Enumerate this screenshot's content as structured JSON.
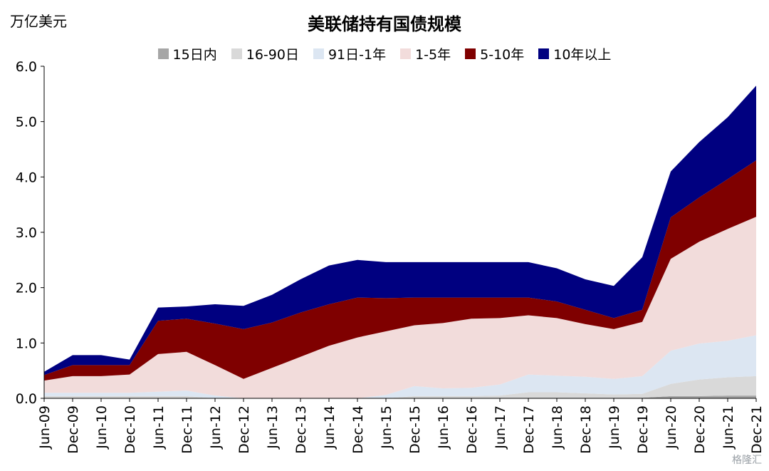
{
  "chart_data": {
    "type": "area",
    "title": "美联储持有国债规模",
    "unit_label": "万亿美元",
    "ylim": [
      0,
      6
    ],
    "y_ticks": [
      "0.0",
      "1.0",
      "2.0",
      "3.0",
      "4.0",
      "5.0",
      "6.0"
    ],
    "x_ticks": [
      "Jun-09",
      "Dec-09",
      "Jun-10",
      "Dec-10",
      "Jun-11",
      "Dec-11",
      "Jun-12",
      "Dec-12",
      "Jun-13",
      "Dec-13",
      "Jun-14",
      "Dec-14",
      "Jun-15",
      "Dec-15",
      "Jun-16",
      "Dec-16",
      "Jun-17",
      "Dec-17",
      "Jun-18",
      "Dec-18",
      "Jun-19",
      "Dec-19",
      "Jun-20",
      "Dec-20",
      "Jun-21",
      "Dec-21"
    ],
    "legend_position": "top",
    "stacked": true,
    "x": [
      "Jun-09",
      "Dec-09",
      "Jun-10",
      "Dec-10",
      "Jun-11",
      "Dec-11",
      "Jun-12",
      "Dec-12",
      "Jun-13",
      "Dec-13",
      "Jun-14",
      "Dec-14",
      "Jun-15",
      "Dec-15",
      "Jun-16",
      "Dec-16",
      "Jun-17",
      "Dec-17",
      "Jun-18",
      "Dec-18",
      "Jun-19",
      "Dec-19",
      "Jun-20",
      "Dec-20",
      "Jun-21",
      "Dec-21"
    ],
    "series": [
      {
        "name": "15日内",
        "color": "#a6a6a6",
        "values": [
          0.01,
          0.01,
          0.01,
          0.01,
          0.01,
          0.01,
          0.0,
          0.0,
          0.0,
          0.0,
          0.0,
          0.0,
          0.0,
          0.0,
          0.0,
          0.0,
          0.0,
          0.01,
          0.01,
          0.01,
          0.01,
          0.01,
          0.04,
          0.04,
          0.05,
          0.05
        ]
      },
      {
        "name": "16-90日",
        "color": "#d9d9d9",
        "values": [
          0.03,
          0.03,
          0.03,
          0.03,
          0.03,
          0.03,
          0.0,
          0.0,
          0.0,
          0.0,
          0.0,
          0.0,
          0.0,
          0.04,
          0.04,
          0.04,
          0.05,
          0.1,
          0.1,
          0.08,
          0.06,
          0.07,
          0.22,
          0.3,
          0.33,
          0.35
        ]
      },
      {
        "name": "91日-1年",
        "color": "#dce6f2",
        "values": [
          0.06,
          0.06,
          0.06,
          0.06,
          0.08,
          0.1,
          0.05,
          0.0,
          0.0,
          0.0,
          0.0,
          0.0,
          0.06,
          0.18,
          0.14,
          0.15,
          0.2,
          0.32,
          0.3,
          0.3,
          0.28,
          0.32,
          0.6,
          0.65,
          0.66,
          0.74
        ]
      },
      {
        "name": "1-5年",
        "color": "#f2dcdb",
        "values": [
          0.22,
          0.3,
          0.3,
          0.33,
          0.68,
          0.7,
          0.55,
          0.35,
          0.55,
          0.75,
          0.95,
          1.1,
          1.15,
          1.1,
          1.18,
          1.25,
          1.2,
          1.07,
          1.04,
          0.95,
          0.9,
          0.98,
          1.66,
          1.84,
          2.02,
          2.14
        ]
      },
      {
        "name": "5-10年",
        "color": "#7f0000",
        "values": [
          0.1,
          0.2,
          0.2,
          0.17,
          0.6,
          0.6,
          0.75,
          0.9,
          0.82,
          0.8,
          0.75,
          0.72,
          0.6,
          0.5,
          0.46,
          0.38,
          0.37,
          0.32,
          0.3,
          0.26,
          0.2,
          0.22,
          0.75,
          0.8,
          0.9,
          1.02
        ]
      },
      {
        "name": "10年以上",
        "color": "#000080",
        "values": [
          0.06,
          0.18,
          0.18,
          0.1,
          0.24,
          0.22,
          0.35,
          0.42,
          0.5,
          0.6,
          0.7,
          0.68,
          0.65,
          0.64,
          0.64,
          0.64,
          0.64,
          0.64,
          0.6,
          0.55,
          0.58,
          0.95,
          0.83,
          1.0,
          1.12,
          1.35
        ]
      }
    ]
  },
  "watermark": "格隆汇"
}
